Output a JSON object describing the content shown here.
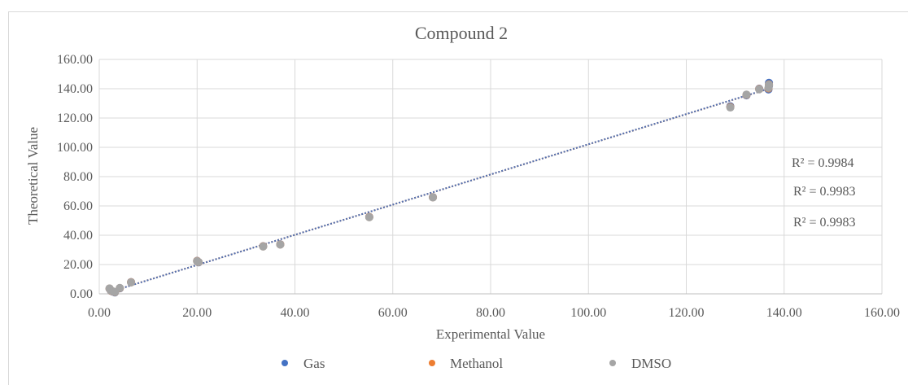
{
  "chart_data": {
    "type": "scatter",
    "title": "Compound 2",
    "xlabel": "Experimental Value",
    "ylabel": "Theoretical Value",
    "xlim": [
      0,
      160
    ],
    "ylim": [
      0,
      160
    ],
    "xticks": [
      "0.00",
      "20.00",
      "40.00",
      "60.00",
      "80.00",
      "100.00",
      "120.00",
      "140.00",
      "160.00"
    ],
    "yticks": [
      "0.00",
      "20.00",
      "40.00",
      "60.00",
      "80.00",
      "100.00",
      "120.00",
      "140.00",
      "160.00"
    ],
    "grid": true,
    "legend_position": "bottom",
    "series": [
      {
        "name": "Gas",
        "color": "#4472c4",
        "x": [
          2.1,
          2.4,
          2.8,
          3.2,
          4.2,
          6.5,
          20.0,
          20.3,
          33.5,
          37.0,
          55.2,
          68.2,
          129.0,
          132.3,
          134.9,
          136.8,
          136.9,
          136.9
        ],
        "y": [
          3.5,
          2.0,
          1.5,
          1.0,
          3.8,
          8.0,
          22.5,
          21.5,
          32.5,
          33.8,
          52.5,
          66.0,
          128.0,
          135.5,
          140.0,
          139.5,
          142.0,
          144.0
        ]
      },
      {
        "name": "Methanol",
        "color": "#ed7d31",
        "x": [
          2.1,
          2.4,
          2.8,
          3.2,
          4.2,
          6.5,
          20.0,
          20.3,
          33.5,
          37.0,
          55.2,
          68.2,
          129.0,
          132.3,
          134.9,
          136.8,
          136.9,
          136.9
        ],
        "y": [
          3.6,
          2.1,
          1.6,
          1.1,
          3.9,
          7.9,
          22.4,
          21.6,
          32.4,
          33.7,
          52.4,
          65.9,
          127.5,
          135.8,
          139.8,
          140.2,
          142.5,
          143.0
        ]
      },
      {
        "name": "DMSO",
        "color": "#a5a5a5",
        "x": [
          2.1,
          2.4,
          2.8,
          3.2,
          4.2,
          6.5,
          20.0,
          20.3,
          33.5,
          37.0,
          55.2,
          68.2,
          129.0,
          132.3,
          134.9,
          136.8,
          136.9,
          136.9
        ],
        "y": [
          3.7,
          2.2,
          1.7,
          1.2,
          4.0,
          7.8,
          22.3,
          21.7,
          32.3,
          33.6,
          52.3,
          65.8,
          127.2,
          136.0,
          139.6,
          140.6,
          142.8,
          142.2
        ]
      }
    ],
    "trendlines": [
      {
        "series": "Gas",
        "r2_label": "R² = 0.9984"
      },
      {
        "series": "Methanol",
        "r2_label": "R² = 0.9983"
      },
      {
        "series": "DMSO",
        "r2_label": "R² = 0.9983"
      }
    ]
  }
}
